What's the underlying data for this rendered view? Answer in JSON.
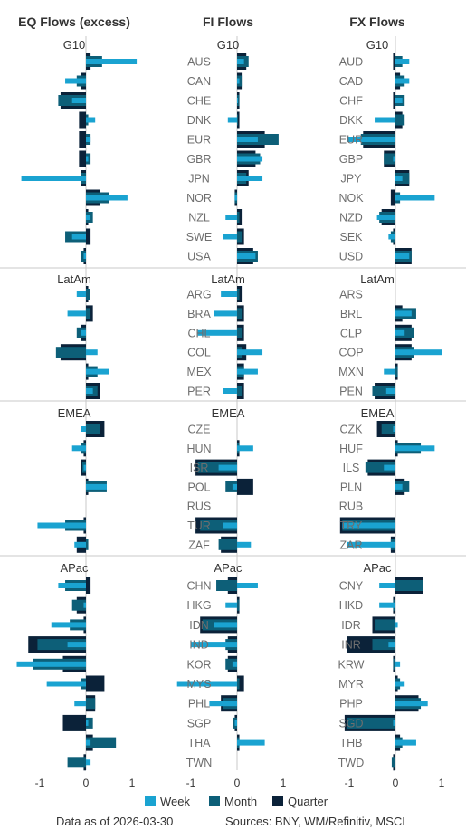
{
  "chart_data": {
    "type": "bar",
    "orientation": "horizontal",
    "colors": {
      "Quarter": "#0b2239",
      "Month": "#0d5f78",
      "Week": "#1aa3d1"
    },
    "legend": {
      "position": "bottom",
      "entries": [
        "Week",
        "Month",
        "Quarter"
      ]
    },
    "xlim": [
      -1,
      1
    ],
    "xticks": [
      -1,
      0,
      1
    ],
    "xtick_labels": [
      "-1",
      "0",
      "1"
    ],
    "sections": [
      "G10",
      "LatAm",
      "EMEA",
      "APac"
    ],
    "panels": [
      {
        "title": "EQ Flows (excess)",
        "show_labels": false,
        "groups": [
          {
            "section": "G10",
            "rows": [
              {
                "label": "AUS",
                "Quarter": 0.1,
                "Month": 0.35,
                "Week": 1.1
              },
              {
                "label": "CAN",
                "Quarter": -0.1,
                "Month": -0.2,
                "Week": -0.45
              },
              {
                "label": "CHE",
                "Quarter": -0.55,
                "Month": -0.6,
                "Week": -0.3
              },
              {
                "label": "DNK",
                "Quarter": -0.15,
                "Month": 0.05,
                "Week": 0.2
              },
              {
                "label": "EUR",
                "Quarter": -0.15,
                "Month": 0.1,
                "Week": 0.1
              },
              {
                "label": "GBR",
                "Quarter": -0.15,
                "Month": 0.1,
                "Week": 0.05
              },
              {
                "label": "JPN",
                "Quarter": -0.1,
                "Month": -0.1,
                "Week": -1.4
              },
              {
                "label": "NOR",
                "Quarter": 0.3,
                "Month": 0.5,
                "Week": 0.9
              },
              {
                "label": "NZL",
                "Quarter": 0.05,
                "Month": 0.15,
                "Week": 0.1
              },
              {
                "label": "SWE",
                "Quarter": 0.1,
                "Month": -0.45,
                "Week": -0.3
              },
              {
                "label": "USA",
                "Quarter": -0.05,
                "Month": -0.1,
                "Week": -0.05
              }
            ]
          },
          {
            "section": "LatAm",
            "rows": [
              {
                "label": "ARG",
                "Quarter": 0.05,
                "Month": 0.08,
                "Week": -0.2
              },
              {
                "label": "BRA",
                "Quarter": 0.15,
                "Month": 0.1,
                "Week": -0.4
              },
              {
                "label": "CHL",
                "Quarter": -0.1,
                "Month": -0.2,
                "Week": -0.1
              },
              {
                "label": "COL",
                "Quarter": -0.55,
                "Month": -0.65,
                "Week": 0.25
              },
              {
                "label": "MEX",
                "Quarter": 0.05,
                "Month": 0.25,
                "Week": 0.5
              },
              {
                "label": "PER",
                "Quarter": 0.3,
                "Month": 0.25,
                "Week": 0.15
              }
            ]
          },
          {
            "section": "EMEA",
            "rows": [
              {
                "label": "CZE",
                "Quarter": 0.4,
                "Month": 0.3,
                "Week": -0.1
              },
              {
                "label": "HUN",
                "Quarter": -0.05,
                "Month": -0.1,
                "Week": -0.3
              },
              {
                "label": "ISR",
                "Quarter": -0.1,
                "Month": -0.08,
                "Week": -0.05
              },
              {
                "label": "POL",
                "Quarter": 0.05,
                "Month": 0.45,
                "Week": 0.45
              },
              {
                "label": "RUS",
                "Quarter": 0,
                "Month": 0,
                "Week": 0
              },
              {
                "label": "TUR",
                "Quarter": -0.05,
                "Month": -0.45,
                "Week": -1.05
              },
              {
                "label": "ZAF",
                "Quarter": -0.2,
                "Month": 0.05,
                "Week": -0.25
              }
            ]
          },
          {
            "section": "APac",
            "rows": [
              {
                "label": "CHN",
                "Quarter": 0.1,
                "Month": -0.45,
                "Week": -0.6
              },
              {
                "label": "HKG",
                "Quarter": -0.2,
                "Month": -0.3,
                "Week": -0.05
              },
              {
                "label": "IDN",
                "Quarter": -0.05,
                "Month": -0.35,
                "Week": -0.75
              },
              {
                "label": "IND",
                "Quarter": -1.25,
                "Month": -1.05,
                "Week": -0.4
              },
              {
                "label": "KOR",
                "Quarter": -0.5,
                "Month": -1.15,
                "Week": -1.5
              },
              {
                "label": "MYS",
                "Quarter": 0.4,
                "Month": -0.1,
                "Week": -0.85
              },
              {
                "label": "PHL",
                "Quarter": 0.2,
                "Month": 0.2,
                "Week": -0.25
              },
              {
                "label": "SGP",
                "Quarter": -0.5,
                "Month": 0.15,
                "Week": 0.05
              },
              {
                "label": "THA",
                "Quarter": 0.15,
                "Month": 0.65,
                "Week": 0.1
              },
              {
                "label": "TWN",
                "Quarter": -0.05,
                "Month": -0.4,
                "Week": 0.1
              }
            ]
          }
        ]
      },
      {
        "title": "FI Flows",
        "show_labels": true,
        "groups": [
          {
            "section": "G10",
            "rows": [
              {
                "label": "AUS",
                "Quarter": 0.2,
                "Month": 0.25,
                "Week": 0.15
              },
              {
                "label": "CAN",
                "Quarter": 0.1,
                "Month": 0.1,
                "Week": 0.05
              },
              {
                "label": "CHE",
                "Quarter": 0.05,
                "Month": 0.05,
                "Week": 0.02
              },
              {
                "label": "DNK",
                "Quarter": 0.05,
                "Month": 0.02,
                "Week": -0.2
              },
              {
                "label": "EUR",
                "Quarter": 0.6,
                "Month": 0.9,
                "Week": 0.45
              },
              {
                "label": "GBR",
                "Quarter": 0.4,
                "Month": 0.5,
                "Week": 0.55
              },
              {
                "label": "JPN",
                "Quarter": 0.25,
                "Month": 0.2,
                "Week": 0.55
              },
              {
                "label": "NOR",
                "Quarter": -0.05,
                "Month": -0.05,
                "Week": -0.05
              },
              {
                "label": "NZL",
                "Quarter": 0.1,
                "Month": 0.05,
                "Week": -0.25
              },
              {
                "label": "SWE",
                "Quarter": 0.15,
                "Month": 0.1,
                "Week": -0.3
              },
              {
                "label": "USA",
                "Quarter": 0.35,
                "Month": 0.45,
                "Week": 0.4
              }
            ]
          },
          {
            "section": "LatAm",
            "rows": [
              {
                "label": "ARG",
                "Quarter": 0.1,
                "Month": 0.05,
                "Week": -0.35
              },
              {
                "label": "BRA",
                "Quarter": 0.15,
                "Month": 0.1,
                "Week": -0.5
              },
              {
                "label": "CHL",
                "Quarter": 0.15,
                "Month": 0.1,
                "Week": -0.85
              },
              {
                "label": "COL",
                "Quarter": 0.2,
                "Month": 0.1,
                "Week": 0.55
              },
              {
                "label": "MEX",
                "Quarter": 0.15,
                "Month": 0.15,
                "Week": 0.45
              },
              {
                "label": "PER",
                "Quarter": 0.15,
                "Month": 0.1,
                "Week": -0.3
              }
            ]
          },
          {
            "section": "EMEA",
            "rows": [
              {
                "label": "CZE",
                "Quarter": 0,
                "Month": 0,
                "Week": 0
              },
              {
                "label": "HUN",
                "Quarter": 0.05,
                "Month": 0.05,
                "Week": 0.35
              },
              {
                "label": "ISR",
                "Quarter": -0.9,
                "Month": -0.85,
                "Week": -0.4
              },
              {
                "label": "POL",
                "Quarter": 0.35,
                "Month": -0.25,
                "Week": -0.1
              },
              {
                "label": "RUS",
                "Quarter": 0,
                "Month": 0,
                "Week": 0
              },
              {
                "label": "TUR",
                "Quarter": -0.9,
                "Month": -0.8,
                "Week": -0.3
              },
              {
                "label": "ZAF",
                "Quarter": -0.35,
                "Month": -0.4,
                "Week": 0.3
              }
            ]
          },
          {
            "section": "APac",
            "rows": [
              {
                "label": "CHN",
                "Quarter": -0.2,
                "Month": -0.45,
                "Week": 0.45
              },
              {
                "label": "HKG",
                "Quarter": 0.05,
                "Month": 0.05,
                "Week": -0.25
              },
              {
                "label": "IDN",
                "Quarter": -0.8,
                "Month": -0.75,
                "Week": -0.5
              },
              {
                "label": "IND",
                "Quarter": -0.2,
                "Month": -0.25,
                "Week": -1.0
              },
              {
                "label": "KOR",
                "Quarter": -0.2,
                "Month": -0.25,
                "Week": -0.1
              },
              {
                "label": "MYS",
                "Quarter": 0.15,
                "Month": 0.05,
                "Week": -1.3
              },
              {
                "label": "PHL",
                "Quarter": -0.35,
                "Month": -0.3,
                "Week": -0.6
              },
              {
                "label": "SGP",
                "Quarter": -0.05,
                "Month": -0.08,
                "Week": -0.05
              },
              {
                "label": "THA",
                "Quarter": 0.05,
                "Month": 0.05,
                "Week": 0.6
              },
              {
                "label": "TWN",
                "Quarter": 0,
                "Month": 0,
                "Week": 0
              }
            ]
          }
        ]
      },
      {
        "title": "FX Flows",
        "show_labels": true,
        "groups": [
          {
            "section": "G10",
            "rows": [
              {
                "label": "AUD",
                "Quarter": -0.05,
                "Month": 0.15,
                "Week": 0.3
              },
              {
                "label": "CAD",
                "Quarter": 0.1,
                "Month": 0.2,
                "Week": 0.3
              },
              {
                "label": "CHF",
                "Quarter": -0.05,
                "Month": 0.2,
                "Week": 0.15
              },
              {
                "label": "DKK",
                "Quarter": 0.15,
                "Month": 0.2,
                "Week": -0.45
              },
              {
                "label": "EUR",
                "Quarter": -0.7,
                "Month": -0.75,
                "Week": -1.05
              },
              {
                "label": "GBP",
                "Quarter": -0.25,
                "Month": -0.25,
                "Week": -0.05
              },
              {
                "label": "JPY",
                "Quarter": 0.3,
                "Month": 0.3,
                "Week": 0.15
              },
              {
                "label": "NOK",
                "Quarter": -0.1,
                "Month": 0.1,
                "Week": 0.85
              },
              {
                "label": "NZD",
                "Quarter": -0.3,
                "Month": -0.35,
                "Week": -0.4
              },
              {
                "label": "SEK",
                "Quarter": -0.05,
                "Month": -0.1,
                "Week": -0.15
              },
              {
                "label": "USD",
                "Quarter": 0.35,
                "Month": 0.35,
                "Week": 0.3
              }
            ]
          },
          {
            "section": "LatAm",
            "rows": [
              {
                "label": "ARS",
                "Quarter": 0,
                "Month": 0,
                "Week": 0
              },
              {
                "label": "BRL",
                "Quarter": 0.15,
                "Month": 0.45,
                "Week": 0.35
              },
              {
                "label": "CLP",
                "Quarter": 0.35,
                "Month": 0.4,
                "Week": 0.2
              },
              {
                "label": "COP",
                "Quarter": 0.35,
                "Month": 0.4,
                "Week": 1.0
              },
              {
                "label": "MXN",
                "Quarter": 0.05,
                "Month": 0.05,
                "Week": -0.25
              },
              {
                "label": "PEN",
                "Quarter": -0.45,
                "Month": -0.5,
                "Week": -0.2
              }
            ]
          },
          {
            "section": "EMEA",
            "rows": [
              {
                "label": "CZK",
                "Quarter": -0.4,
                "Month": -0.3,
                "Week": -0.05
              },
              {
                "label": "HUF",
                "Quarter": 0.05,
                "Month": 0.55,
                "Week": 0.85
              },
              {
                "label": "ILS",
                "Quarter": -0.6,
                "Month": -0.65,
                "Week": -0.25
              },
              {
                "label": "PLN",
                "Quarter": 0.2,
                "Month": 0.3,
                "Week": 0.15
              },
              {
                "label": "RUB",
                "Quarter": 0,
                "Month": 0,
                "Week": 0
              },
              {
                "label": "TRY",
                "Quarter": -1.2,
                "Month": -1.15,
                "Week": -1.15
              },
              {
                "label": "ZAR",
                "Quarter": -0.1,
                "Month": -0.1,
                "Week": -1.05
              }
            ]
          },
          {
            "section": "APac",
            "rows": [
              {
                "label": "CNY",
                "Quarter": 0.6,
                "Month": 0.6,
                "Week": -0.35
              },
              {
                "label": "HKD",
                "Quarter": -0.05,
                "Month": -0.05,
                "Week": -0.35
              },
              {
                "label": "IDR",
                "Quarter": -0.5,
                "Month": -0.45,
                "Week": 0.05
              },
              {
                "label": "INR",
                "Quarter": -1.05,
                "Month": -0.5,
                "Week": -0.15
              },
              {
                "label": "KRW",
                "Quarter": -0.05,
                "Month": -0.05,
                "Week": 0.1
              },
              {
                "label": "MYR",
                "Quarter": 0.05,
                "Month": 0.1,
                "Week": 0.2
              },
              {
                "label": "PHP",
                "Quarter": 0.5,
                "Month": 0.55,
                "Week": 0.7
              },
              {
                "label": "SGD",
                "Quarter": -1.1,
                "Month": -1.05,
                "Week": -0.05
              },
              {
                "label": "THB",
                "Quarter": 0.1,
                "Month": 0.15,
                "Week": 0.45
              },
              {
                "label": "TWD",
                "Quarter": -0.05,
                "Month": -0.08,
                "Week": -0.02
              }
            ]
          }
        ]
      }
    ]
  },
  "footer": {
    "date_text": "Data as of 2026-03-30",
    "sources_text": "Sources:  BNY, WM/Refinitiv, MSCI"
  }
}
